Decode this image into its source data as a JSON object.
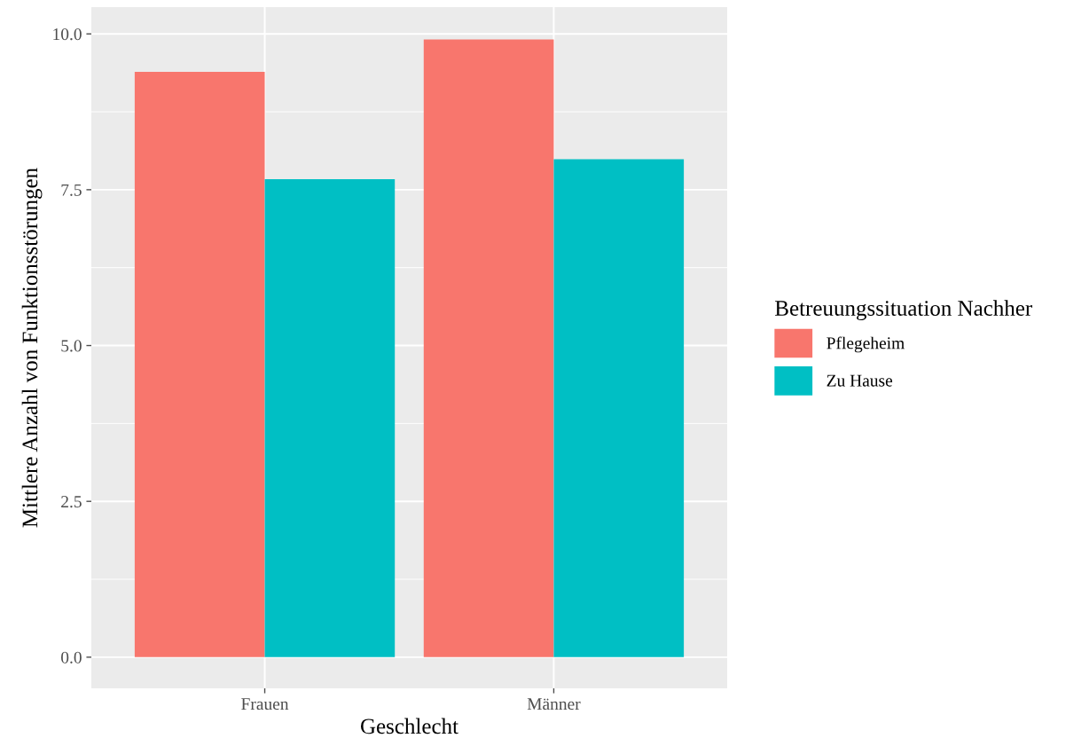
{
  "chart_data": {
    "type": "bar",
    "xlabel": "Geschlecht",
    "ylabel": "Mittlere Anzahl von Funktionsstörungen",
    "legend_title": "Betreuungssituation Nachher",
    "categories": [
      "Frauen",
      "Männer"
    ],
    "series": [
      {
        "name": "Pflegeheim",
        "color": "#f8766d",
        "values": [
          9.39,
          9.91
        ]
      },
      {
        "name": "Zu Hause",
        "color": "#00bfc4",
        "values": [
          7.67,
          7.99
        ]
      }
    ],
    "ylim": [
      -0.5,
      10.43
    ],
    "yticks": [
      {
        "value": 0,
        "label": "0.0"
      },
      {
        "value": 2.5,
        "label": "2.5"
      },
      {
        "value": 5,
        "label": "5.0"
      },
      {
        "value": 7.5,
        "label": "7.5"
      },
      {
        "value": 10,
        "label": "10.0"
      }
    ],
    "grid": true,
    "legend": "right"
  }
}
